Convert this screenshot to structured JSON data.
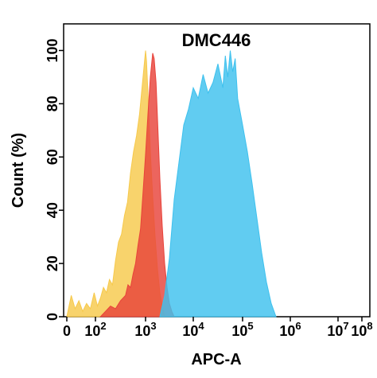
{
  "chart_data": {
    "type": "area",
    "title": "DMC446",
    "xlabel": "APC-A",
    "ylabel": "Count  (%)",
    "ylim": [
      0,
      110
    ],
    "y_ticks": [
      "0",
      "20",
      "40",
      "60",
      "80",
      "100"
    ],
    "x_ticks": [
      {
        "base": "0",
        "exp": ""
      },
      {
        "base": "10",
        "exp": "2"
      },
      {
        "base": "10",
        "exp": "3"
      },
      {
        "base": "10",
        "exp": "4"
      },
      {
        "base": "10",
        "exp": "5"
      },
      {
        "base": "10",
        "exp": "6"
      },
      {
        "base": "10",
        "exp": "7"
      },
      {
        "base": "10",
        "exp": "8"
      }
    ],
    "x_scale": "biexponential",
    "grid": false,
    "series": [
      {
        "color": "#f6c94c",
        "log_x": [
          1.55,
          1.62,
          1.68,
          1.74,
          1.8,
          1.86,
          1.92,
          1.98,
          2.04,
          2.1,
          2.16,
          2.22,
          2.28,
          2.34,
          2.4,
          2.46,
          2.52,
          2.58,
          2.64,
          2.7,
          2.76,
          2.82,
          2.88,
          2.94,
          3.0,
          3.02,
          3.05,
          3.1,
          3.15,
          3.2,
          3.25,
          3.3,
          3.35,
          3.4
        ],
        "values": [
          0,
          8,
          3,
          6,
          2,
          5,
          3,
          9,
          4,
          7,
          11,
          9,
          14,
          12,
          21,
          28,
          31,
          38,
          43,
          54,
          62,
          68,
          76,
          88,
          100,
          96,
          84,
          62,
          45,
          30,
          18,
          9,
          4,
          0
        ]
      },
      {
        "color": "#e8433b",
        "log_x": [
          2.1,
          2.2,
          2.3,
          2.4,
          2.5,
          2.6,
          2.65,
          2.7,
          2.75,
          2.8,
          2.85,
          2.9,
          2.95,
          3.0,
          3.05,
          3.1,
          3.15,
          3.18,
          3.22,
          3.26,
          3.3,
          3.35,
          3.4,
          3.45,
          3.5,
          3.55,
          3.6
        ],
        "values": [
          0,
          2,
          4,
          3,
          6,
          8,
          12,
          11,
          16,
          20,
          27,
          33,
          47,
          61,
          76,
          90,
          99,
          97,
          88,
          70,
          52,
          34,
          20,
          11,
          5,
          2,
          0
        ]
      },
      {
        "color": "#3ec1ee",
        "log_x": [
          3.3,
          3.4,
          3.5,
          3.6,
          3.7,
          3.8,
          3.9,
          4.0,
          4.1,
          4.2,
          4.3,
          4.4,
          4.5,
          4.6,
          4.65,
          4.7,
          4.75,
          4.8,
          4.85,
          4.9,
          5.0,
          5.1,
          5.2,
          5.3,
          5.4,
          5.5,
          5.6,
          5.7
        ],
        "values": [
          0,
          8,
          22,
          44,
          58,
          72,
          78,
          86,
          82,
          91,
          84,
          88,
          95,
          86,
          98,
          90,
          100,
          92,
          97,
          82,
          72,
          62,
          50,
          37,
          24,
          13,
          5,
          0
        ]
      }
    ]
  }
}
